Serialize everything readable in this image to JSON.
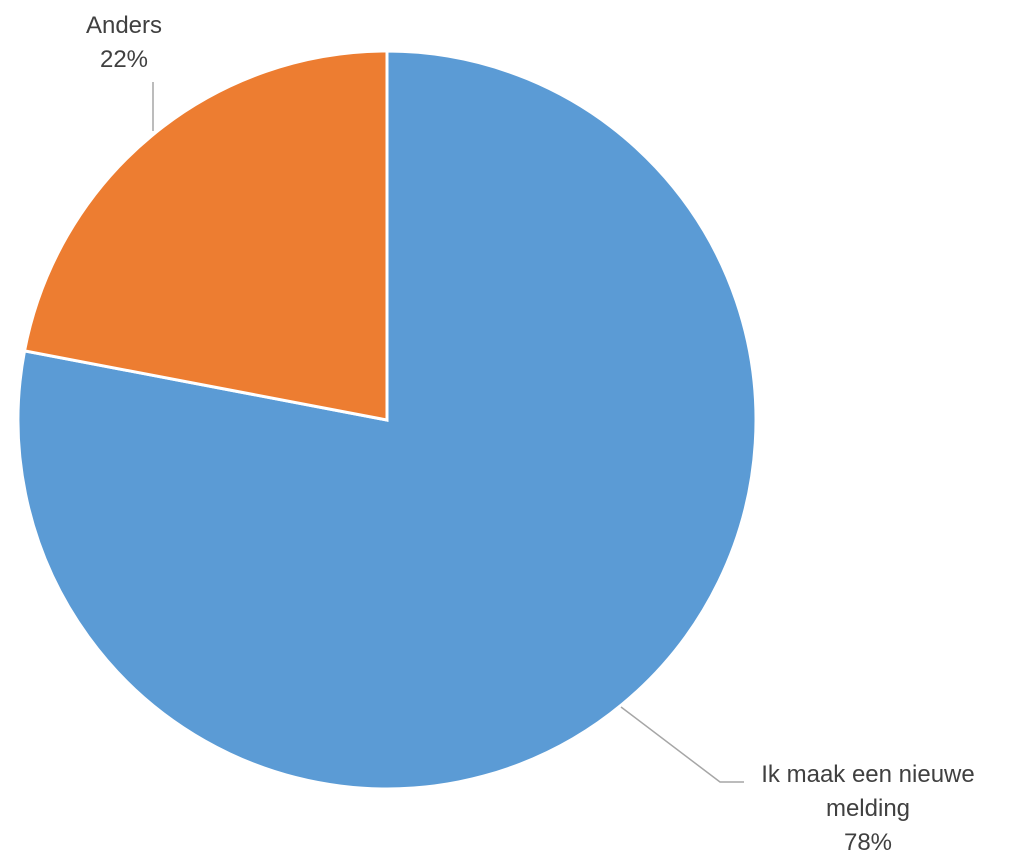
{
  "chart_data": {
    "type": "pie",
    "slices": [
      {
        "label_lines": [
          "Ik maak een nieuwe",
          "melding"
        ],
        "percent_label": "78%",
        "value": 78,
        "color": "#5b9bd5"
      },
      {
        "label_lines": [
          "Anders"
        ],
        "percent_label": "22%",
        "value": 22,
        "color": "#ed7d31"
      }
    ],
    "start": "12 o'clock",
    "direction": "clockwise",
    "legend": "none",
    "data_labels": "outside with leader lines"
  }
}
